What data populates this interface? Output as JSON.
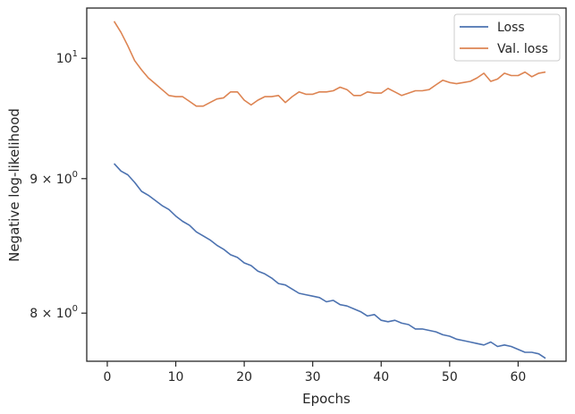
{
  "chart_data": {
    "type": "line",
    "title": "",
    "xlabel": "Epochs",
    "ylabel": "Negative log-likelihood",
    "yscale": "log",
    "xlim": [
      -3,
      67
    ],
    "ylim": [
      7.67,
      10.45
    ],
    "grid": false,
    "legend_position": "top-right",
    "x_ticks": [
      0,
      10,
      20,
      30,
      40,
      50,
      60
    ],
    "x_tick_labels": [
      "0",
      "10",
      "20",
      "30",
      "40",
      "50",
      "60"
    ],
    "y_ticks": [
      8,
      9,
      10
    ],
    "y_tick_labels": [
      {
        "base": "8",
        "sup": "0",
        "prefix": "8 × 10"
      },
      {
        "base": "9",
        "sup": "0",
        "prefix": "9 × 10"
      },
      {
        "base": "10",
        "sup": "1",
        "prefix": "10"
      }
    ],
    "series": [
      {
        "name": "Loss",
        "color": "#4c72b0",
        "x": [
          1,
          2,
          3,
          4,
          5,
          6,
          7,
          8,
          9,
          10,
          11,
          12,
          13,
          14,
          15,
          16,
          17,
          18,
          19,
          20,
          21,
          22,
          23,
          24,
          25,
          26,
          27,
          28,
          29,
          30,
          31,
          32,
          33,
          34,
          35,
          36,
          37,
          38,
          39,
          40,
          41,
          42,
          43,
          44,
          45,
          46,
          47,
          48,
          49,
          50,
          51,
          52,
          53,
          54,
          55,
          56,
          57,
          58,
          59,
          60,
          61,
          62,
          63,
          64
        ],
        "values": [
          9.12,
          9.06,
          9.03,
          8.97,
          8.9,
          8.87,
          8.83,
          8.79,
          8.76,
          8.71,
          8.67,
          8.64,
          8.59,
          8.56,
          8.53,
          8.49,
          8.46,
          8.42,
          8.4,
          8.36,
          8.34,
          8.3,
          8.28,
          8.25,
          8.21,
          8.2,
          8.17,
          8.14,
          8.13,
          8.12,
          8.11,
          8.08,
          8.09,
          8.06,
          8.05,
          8.03,
          8.01,
          7.98,
          7.99,
          7.95,
          7.94,
          7.95,
          7.93,
          7.92,
          7.89,
          7.89,
          7.88,
          7.87,
          7.85,
          7.84,
          7.82,
          7.81,
          7.8,
          7.79,
          7.78,
          7.8,
          7.77,
          7.78,
          7.77,
          7.75,
          7.73,
          7.73,
          7.72,
          7.69
        ]
      },
      {
        "name": "Val. loss",
        "color": "#dd8452",
        "x": [
          1,
          2,
          3,
          4,
          5,
          6,
          7,
          8,
          9,
          10,
          11,
          12,
          13,
          14,
          15,
          16,
          17,
          18,
          19,
          20,
          21,
          22,
          23,
          24,
          25,
          26,
          27,
          28,
          29,
          30,
          31,
          32,
          33,
          34,
          35,
          36,
          37,
          38,
          39,
          40,
          41,
          42,
          43,
          44,
          45,
          46,
          47,
          48,
          49,
          50,
          51,
          52,
          53,
          54,
          55,
          56,
          57,
          58,
          59,
          60,
          61,
          62,
          63,
          64
        ],
        "values": [
          10.33,
          10.23,
          10.11,
          9.98,
          9.9,
          9.83,
          9.78,
          9.73,
          9.68,
          9.67,
          9.67,
          9.63,
          9.59,
          9.59,
          9.62,
          9.65,
          9.66,
          9.71,
          9.71,
          9.64,
          9.6,
          9.64,
          9.67,
          9.67,
          9.68,
          9.62,
          9.67,
          9.71,
          9.69,
          9.69,
          9.71,
          9.71,
          9.72,
          9.75,
          9.73,
          9.68,
          9.68,
          9.71,
          9.7,
          9.7,
          9.74,
          9.71,
          9.68,
          9.7,
          9.72,
          9.72,
          9.73,
          9.77,
          9.81,
          9.79,
          9.78,
          9.79,
          9.8,
          9.83,
          9.87,
          9.8,
          9.82,
          9.87,
          9.85,
          9.85,
          9.88,
          9.84,
          9.87,
          9.88
        ]
      }
    ]
  }
}
